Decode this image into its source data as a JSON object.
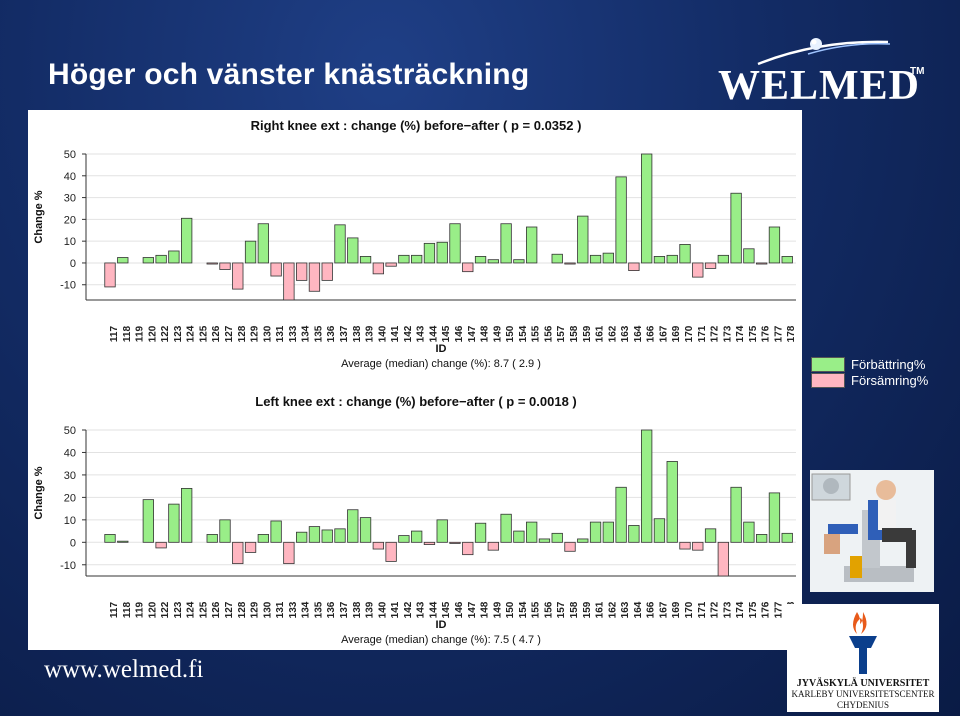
{
  "slide": {
    "title": "Höger och vänster knästräckning",
    "logo_text": "WELMED",
    "logo_tm": "TM",
    "footer_url": "www.welmed.fi",
    "university": {
      "line1": "JYVÄSKYLÄ UNIVERSITET",
      "line2": "KARLEBY UNIVERSITETSCENTER",
      "line3": "CHYDENIUS"
    }
  },
  "legend": {
    "items": [
      {
        "label": "Förbättring%",
        "color": "#99ee88"
      },
      {
        "label": "Försämring%",
        "color": "#ffb6c1"
      }
    ]
  },
  "colors": {
    "positive": "#99ee88",
    "negative": "#ffb6c1",
    "bar_stroke": "#333333"
  },
  "chart_data": [
    {
      "type": "bar",
      "title": "Right knee ext : change (%) before−after ( p =  0.0352 )",
      "xlabel": "ID",
      "ylabel": "Change %",
      "subtitle": "Average (median) change (%): 8.7 ( 2.9 )",
      "ylim": [
        -17,
        50
      ],
      "yticks": [
        50,
        40,
        30,
        20,
        10,
        0,
        -10
      ],
      "grid": true,
      "categories": [
        "117",
        "118",
        "119",
        "120",
        "122",
        "123",
        "124",
        "125",
        "126",
        "127",
        "128",
        "129",
        "130",
        "131",
        "133",
        "134",
        "135",
        "136",
        "137",
        "138",
        "139",
        "140",
        "141",
        "142",
        "143",
        "144",
        "145",
        "146",
        "147",
        "148",
        "149",
        "150",
        "154",
        "155",
        "156",
        "157",
        "158",
        "159",
        "161",
        "162",
        "163",
        "164",
        "166",
        "167",
        "169",
        "170",
        "171",
        "172",
        "173",
        "174",
        "175",
        "176",
        "177",
        "178"
      ],
      "values": [
        -11,
        2.5,
        0,
        2.5,
        3.5,
        5.5,
        20.5,
        0,
        -0.5,
        -3,
        -12,
        10,
        18,
        -6,
        -17,
        -8,
        -13,
        -8,
        17.5,
        11.5,
        3,
        -5,
        -1.5,
        3.5,
        3.5,
        9,
        9.5,
        18,
        -4,
        3,
        1.5,
        18,
        1.5,
        16.5,
        0,
        4,
        -0.5,
        21.5,
        3.5,
        4.5,
        39.5,
        -3.5,
        50,
        3,
        3.5,
        8.5,
        -6.5,
        -2.5,
        3.5,
        32,
        6.5,
        -0.5,
        16.5,
        3
      ]
    },
    {
      "type": "bar",
      "title": "Left knee ext : change (%) before−after ( p =  0.0018 )",
      "xlabel": "ID",
      "ylabel": "Change %",
      "subtitle": "Average (median) change (%): 7.5 ( 4.7 )",
      "ylim": [
        -15,
        50
      ],
      "yticks": [
        50,
        40,
        30,
        20,
        10,
        0,
        -10
      ],
      "grid": true,
      "categories": [
        "117",
        "118",
        "119",
        "120",
        "122",
        "123",
        "124",
        "125",
        "126",
        "127",
        "128",
        "129",
        "130",
        "131",
        "133",
        "134",
        "135",
        "136",
        "137",
        "138",
        "139",
        "140",
        "141",
        "142",
        "143",
        "144",
        "145",
        "146",
        "147",
        "148",
        "149",
        "150",
        "154",
        "155",
        "156",
        "157",
        "158",
        "159",
        "161",
        "162",
        "163",
        "164",
        "166",
        "167",
        "169",
        "170",
        "171",
        "172",
        "173",
        "174",
        "175",
        "176",
        "177",
        "178"
      ],
      "values": [
        3.5,
        0.5,
        0,
        19,
        -2.5,
        17,
        24,
        0,
        3.5,
        10,
        -9.5,
        -4.5,
        3.5,
        9.5,
        -9.5,
        4.5,
        7,
        5.5,
        6,
        14.5,
        11,
        -3,
        -8.5,
        3,
        5,
        -1,
        10,
        -0.5,
        -5.5,
        8.5,
        -3.5,
        12.5,
        5,
        9,
        1.5,
        4,
        -4,
        1.5,
        9,
        9,
        24.5,
        7.5,
        50,
        10.5,
        36,
        -3,
        -3.5,
        6,
        -15,
        24.5,
        9,
        3.5,
        22,
        4
      ]
    }
  ]
}
